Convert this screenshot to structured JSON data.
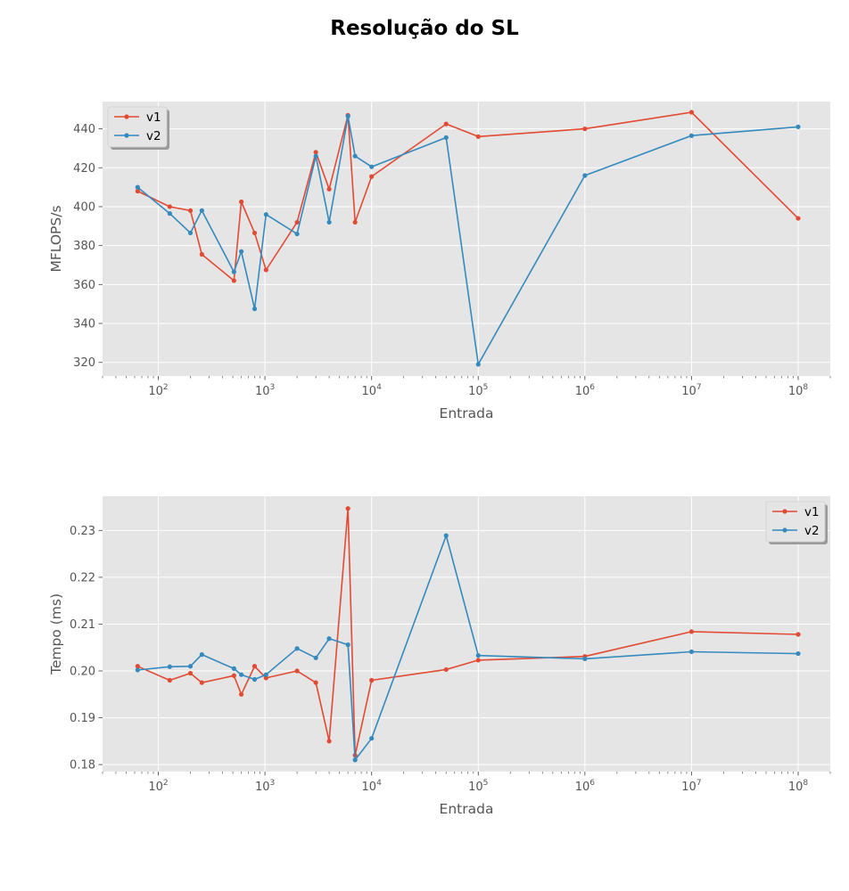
{
  "figure": {
    "title": "Resolução do SL"
  },
  "colors": {
    "v1": "#E24A33",
    "v2": "#348ABD",
    "axes_bg": "#E5E5E5",
    "grid": "#FFFFFF",
    "tick": "#555555"
  },
  "chart_data": [
    {
      "type": "line",
      "xscale": "log",
      "xlabel": "Entrada",
      "ylabel": "MFLOPS/s",
      "xlim": [
        30,
        200000000
      ],
      "ylim": [
        313,
        454
      ],
      "yticks": [
        320,
        340,
        360,
        380,
        400,
        420,
        440
      ],
      "xticks": [
        {
          "base": "10",
          "exp": "2",
          "value": 100
        },
        {
          "base": "10",
          "exp": "3",
          "value": 1000
        },
        {
          "base": "10",
          "exp": "4",
          "value": 10000
        },
        {
          "base": "10",
          "exp": "5",
          "value": 100000
        },
        {
          "base": "10",
          "exp": "6",
          "value": 1000000
        },
        {
          "base": "10",
          "exp": "7",
          "value": 10000000
        },
        {
          "base": "10",
          "exp": "8",
          "value": 100000000
        }
      ],
      "legend": "upper-left",
      "grid": true,
      "series": [
        {
          "name": "v1",
          "x": [
            64,
            128,
            200,
            256,
            512,
            600,
            800,
            1024,
            2000,
            3000,
            4000,
            6000,
            7000,
            10000,
            50000,
            100000,
            1000000,
            10000000,
            100000000
          ],
          "y": [
            408,
            400,
            398,
            375.5,
            362,
            402.5,
            386.5,
            367.5,
            392,
            428,
            409,
            447,
            392,
            415.5,
            442.5,
            436,
            440,
            448.5,
            394
          ]
        },
        {
          "name": "v2",
          "x": [
            64,
            128,
            200,
            256,
            512,
            600,
            800,
            1024,
            2000,
            3000,
            4000,
            6000,
            7000,
            10000,
            50000,
            100000,
            1000000,
            10000000,
            100000000
          ],
          "y": [
            410,
            396.5,
            386.5,
            398,
            366.5,
            377,
            347.5,
            396,
            386,
            426,
            392,
            446.5,
            426,
            420.5,
            435.5,
            319,
            416,
            436.5,
            441
          ]
        }
      ]
    },
    {
      "type": "line",
      "xscale": "log",
      "xlabel": "Entrada",
      "ylabel": "Tempo (ms)",
      "xlim": [
        30,
        200000000
      ],
      "ylim": [
        0.1785,
        0.2373
      ],
      "yticks": [
        0.18,
        0.19,
        0.2,
        0.21,
        0.22,
        0.23
      ],
      "ytick_labels": [
        "0.18",
        "0.19",
        "0.20",
        "0.21",
        "0.22",
        "0.23"
      ],
      "xticks": [
        {
          "base": "10",
          "exp": "2",
          "value": 100
        },
        {
          "base": "10",
          "exp": "3",
          "value": 1000
        },
        {
          "base": "10",
          "exp": "4",
          "value": 10000
        },
        {
          "base": "10",
          "exp": "5",
          "value": 100000
        },
        {
          "base": "10",
          "exp": "6",
          "value": 1000000
        },
        {
          "base": "10",
          "exp": "7",
          "value": 10000000
        },
        {
          "base": "10",
          "exp": "8",
          "value": 100000000
        }
      ],
      "legend": "upper-right",
      "grid": true,
      "series": [
        {
          "name": "v1",
          "x": [
            64,
            128,
            200,
            256,
            512,
            600,
            800,
            1024,
            2000,
            3000,
            4000,
            6000,
            7000,
            10000,
            50000,
            100000,
            1000000,
            10000000,
            100000000
          ],
          "y": [
            0.201,
            0.198,
            0.1995,
            0.1975,
            0.199,
            0.195,
            0.201,
            0.1985,
            0.2,
            0.1975,
            0.185,
            0.2347,
            0.182,
            0.198,
            0.2003,
            0.2023,
            0.2031,
            0.2084,
            0.2078
          ]
        },
        {
          "name": "v2",
          "x": [
            64,
            128,
            200,
            256,
            512,
            600,
            800,
            1024,
            2000,
            3000,
            4000,
            6000,
            7000,
            10000,
            50000,
            100000,
            1000000,
            10000000,
            100000000
          ],
          "y": [
            0.2002,
            0.2009,
            0.201,
            0.2035,
            0.2005,
            0.1992,
            0.1982,
            0.1992,
            0.2048,
            0.2028,
            0.2069,
            0.2056,
            0.181,
            0.1856,
            0.2289,
            0.2033,
            0.2026,
            0.2041,
            0.2037
          ]
        }
      ]
    }
  ]
}
